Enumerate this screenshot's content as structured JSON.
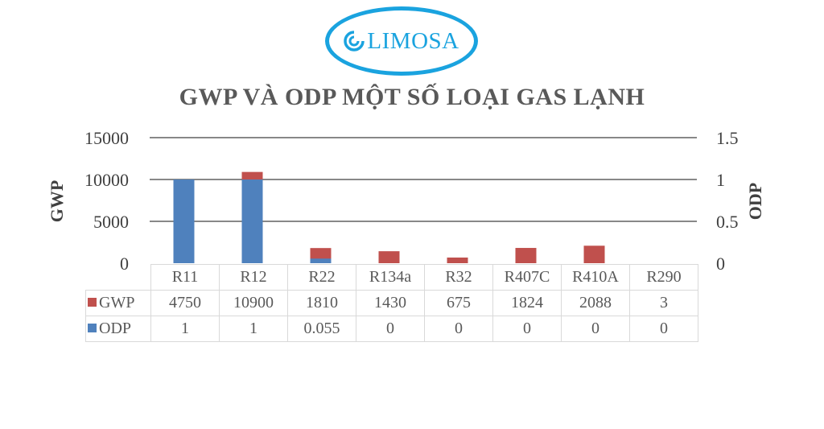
{
  "logo": {
    "brand": "LIMOSA",
    "color": "#1aa3df"
  },
  "chart_data": {
    "type": "bar",
    "title": "GWP VÀ ODP MỘT SỐ LOẠI GAS LẠNH",
    "categories": [
      "R11",
      "R12",
      "R22",
      "R134a",
      "R32",
      "R407C",
      "R410A",
      "R290"
    ],
    "series": [
      {
        "name": "GWP",
        "axis": "left",
        "color": "#c0504d",
        "values": [
          4750,
          10900,
          1810,
          1430,
          675,
          1824,
          2088,
          3
        ]
      },
      {
        "name": "ODP",
        "axis": "right",
        "color": "#4f81bd",
        "values": [
          1,
          1,
          0.055,
          0,
          0,
          0,
          0,
          0
        ]
      }
    ],
    "ylabel": "GWP",
    "y2label": "ODP",
    "ylim": [
      0,
      15000
    ],
    "y2lim": [
      0,
      1.5
    ],
    "yticks": [
      "15000",
      "10000",
      "5000",
      "0"
    ],
    "y2ticks": [
      "1.5",
      "1",
      "0.5",
      "0"
    ],
    "grid": true,
    "legend": "data-table"
  }
}
